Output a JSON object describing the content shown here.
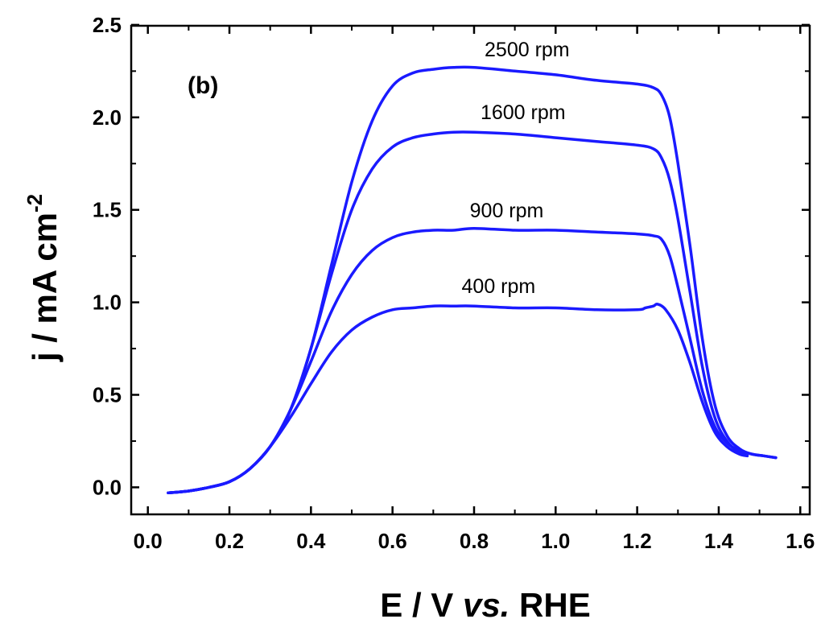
{
  "chart_data": {
    "type": "line",
    "panel_label": "(b)",
    "xlabel": {
      "main": "E / V ",
      "italic": "vs.",
      "tail": " RHE"
    },
    "ylabel": {
      "main": "j / mA cm",
      "sup": "-2"
    },
    "xlim": [
      0.0,
      1.6
    ],
    "ylim": [
      -0.15,
      2.5
    ],
    "xticks": [
      "0.0",
      "0.2",
      "0.4",
      "0.6",
      "0.8",
      "1.0",
      "1.2",
      "1.4",
      "1.6"
    ],
    "yticks": [
      "0.0",
      "0.5",
      "1.0",
      "1.5",
      "2.0",
      "2.5"
    ],
    "grid": false,
    "line_color": "#1a1aff",
    "series": [
      {
        "name": "2500 rpm",
        "x": [
          0.05,
          0.1,
          0.15,
          0.2,
          0.25,
          0.3,
          0.35,
          0.4,
          0.45,
          0.5,
          0.55,
          0.6,
          0.65,
          0.7,
          0.75,
          0.8,
          0.9,
          1.0,
          1.1,
          1.2,
          1.24,
          1.26,
          1.28,
          1.3,
          1.33,
          1.36,
          1.39,
          1.42,
          1.45,
          1.48,
          1.51,
          1.54
        ],
        "y": [
          -0.03,
          -0.02,
          0.0,
          0.03,
          0.1,
          0.22,
          0.42,
          0.75,
          1.2,
          1.65,
          1.98,
          2.17,
          2.24,
          2.26,
          2.27,
          2.27,
          2.25,
          2.23,
          2.2,
          2.18,
          2.16,
          2.12,
          2.0,
          1.75,
          1.3,
          0.8,
          0.45,
          0.28,
          0.21,
          0.18,
          0.17,
          0.16
        ]
      },
      {
        "name": "1600 rpm",
        "x": [
          0.05,
          0.1,
          0.15,
          0.2,
          0.25,
          0.3,
          0.35,
          0.4,
          0.45,
          0.5,
          0.55,
          0.6,
          0.65,
          0.7,
          0.75,
          0.8,
          0.9,
          1.0,
          1.1,
          1.2,
          1.24,
          1.26,
          1.28,
          1.3,
          1.33,
          1.36,
          1.39,
          1.42,
          1.45,
          1.47
        ],
        "y": [
          -0.03,
          -0.02,
          0.0,
          0.03,
          0.1,
          0.22,
          0.42,
          0.75,
          1.15,
          1.5,
          1.72,
          1.84,
          1.89,
          1.91,
          1.92,
          1.92,
          1.91,
          1.89,
          1.87,
          1.85,
          1.83,
          1.78,
          1.66,
          1.45,
          1.05,
          0.65,
          0.38,
          0.25,
          0.19,
          0.17
        ]
      },
      {
        "name": "900 rpm",
        "x": [
          0.05,
          0.1,
          0.15,
          0.2,
          0.25,
          0.3,
          0.35,
          0.4,
          0.45,
          0.5,
          0.55,
          0.6,
          0.65,
          0.7,
          0.75,
          0.8,
          0.9,
          1.0,
          1.1,
          1.2,
          1.24,
          1.26,
          1.28,
          1.3,
          1.33,
          1.36,
          1.39,
          1.42,
          1.45,
          1.48,
          1.51,
          1.54
        ],
        "y": [
          -0.03,
          -0.02,
          0.0,
          0.03,
          0.1,
          0.22,
          0.42,
          0.68,
          0.95,
          1.15,
          1.28,
          1.35,
          1.38,
          1.39,
          1.39,
          1.4,
          1.39,
          1.39,
          1.38,
          1.37,
          1.36,
          1.34,
          1.25,
          1.08,
          0.8,
          0.52,
          0.33,
          0.24,
          0.2,
          0.18,
          0.17,
          0.16
        ]
      },
      {
        "name": "400 rpm",
        "x": [
          0.05,
          0.1,
          0.15,
          0.2,
          0.25,
          0.3,
          0.35,
          0.4,
          0.45,
          0.5,
          0.55,
          0.6,
          0.65,
          0.7,
          0.75,
          0.8,
          0.9,
          1.0,
          1.1,
          1.2,
          1.22,
          1.24,
          1.25,
          1.27,
          1.3,
          1.33,
          1.36,
          1.39,
          1.42,
          1.45,
          1.47
        ],
        "y": [
          -0.03,
          -0.02,
          0.0,
          0.03,
          0.1,
          0.22,
          0.38,
          0.56,
          0.73,
          0.85,
          0.92,
          0.96,
          0.97,
          0.98,
          0.98,
          0.98,
          0.97,
          0.97,
          0.96,
          0.96,
          0.97,
          0.98,
          0.99,
          0.96,
          0.85,
          0.67,
          0.46,
          0.3,
          0.22,
          0.18,
          0.17
        ]
      }
    ],
    "series_label_positions": [
      {
        "name": "2500 rpm",
        "x": 0.93,
        "y": 2.33
      },
      {
        "name": "1600 rpm",
        "x": 0.92,
        "y": 1.99
      },
      {
        "name": "900 rpm",
        "x": 0.88,
        "y": 1.46
      },
      {
        "name": "400 rpm",
        "x": 0.86,
        "y": 1.05
      }
    ]
  }
}
